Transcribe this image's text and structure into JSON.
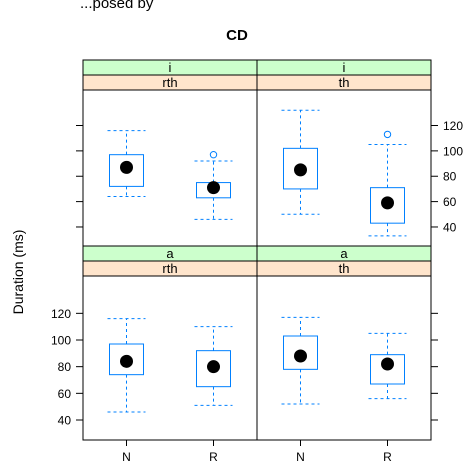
{
  "top_text": "...posed by",
  "chart_data": {
    "type": "box",
    "title": "CD",
    "ylabel": "Duration (ms)",
    "xlabel": "",
    "categories": [
      "N",
      "R"
    ],
    "ylim": [
      25,
      148
    ],
    "yticks": [
      40,
      60,
      80,
      100,
      120
    ],
    "strip_colors": {
      "outer": "#ccffcc",
      "inner": "#ffe5cc"
    },
    "box_color": "#0080ff",
    "panels": [
      {
        "id": "i-rth",
        "strip_outer": "i",
        "strip_inner": "rth",
        "boxes": [
          {
            "category": "N",
            "whisker_low": 64,
            "q1": 72,
            "median": 87,
            "q3": 97,
            "whisker_high": 116,
            "outliers": []
          },
          {
            "category": "R",
            "whisker_low": 46,
            "q1": 63,
            "median": 71,
            "q3": 75,
            "whisker_high": 92,
            "outliers": [
              97
            ]
          }
        ]
      },
      {
        "id": "i-th",
        "strip_outer": "i",
        "strip_inner": "th",
        "boxes": [
          {
            "category": "N",
            "whisker_low": 50,
            "q1": 70,
            "median": 85,
            "q3": 102,
            "whisker_high": 132,
            "outliers": []
          },
          {
            "category": "R",
            "whisker_low": 33,
            "q1": 43,
            "median": 59,
            "q3": 71,
            "whisker_high": 105,
            "outliers": [
              113
            ]
          }
        ]
      },
      {
        "id": "a-rth",
        "strip_outer": "a",
        "strip_inner": "rth",
        "boxes": [
          {
            "category": "N",
            "whisker_low": 46,
            "q1": 74,
            "median": 84,
            "q3": 97,
            "whisker_high": 116,
            "outliers": []
          },
          {
            "category": "R",
            "whisker_low": 51,
            "q1": 65,
            "median": 80,
            "q3": 92,
            "whisker_high": 110,
            "outliers": []
          }
        ]
      },
      {
        "id": "a-th",
        "strip_outer": "a",
        "strip_inner": "th",
        "boxes": [
          {
            "category": "N",
            "whisker_low": 52,
            "q1": 78,
            "median": 88,
            "q3": 103,
            "whisker_high": 117,
            "outliers": []
          },
          {
            "category": "R",
            "whisker_low": 56,
            "q1": 67,
            "median": 82,
            "q3": 89,
            "whisker_high": 105,
            "outliers": []
          }
        ]
      }
    ]
  }
}
